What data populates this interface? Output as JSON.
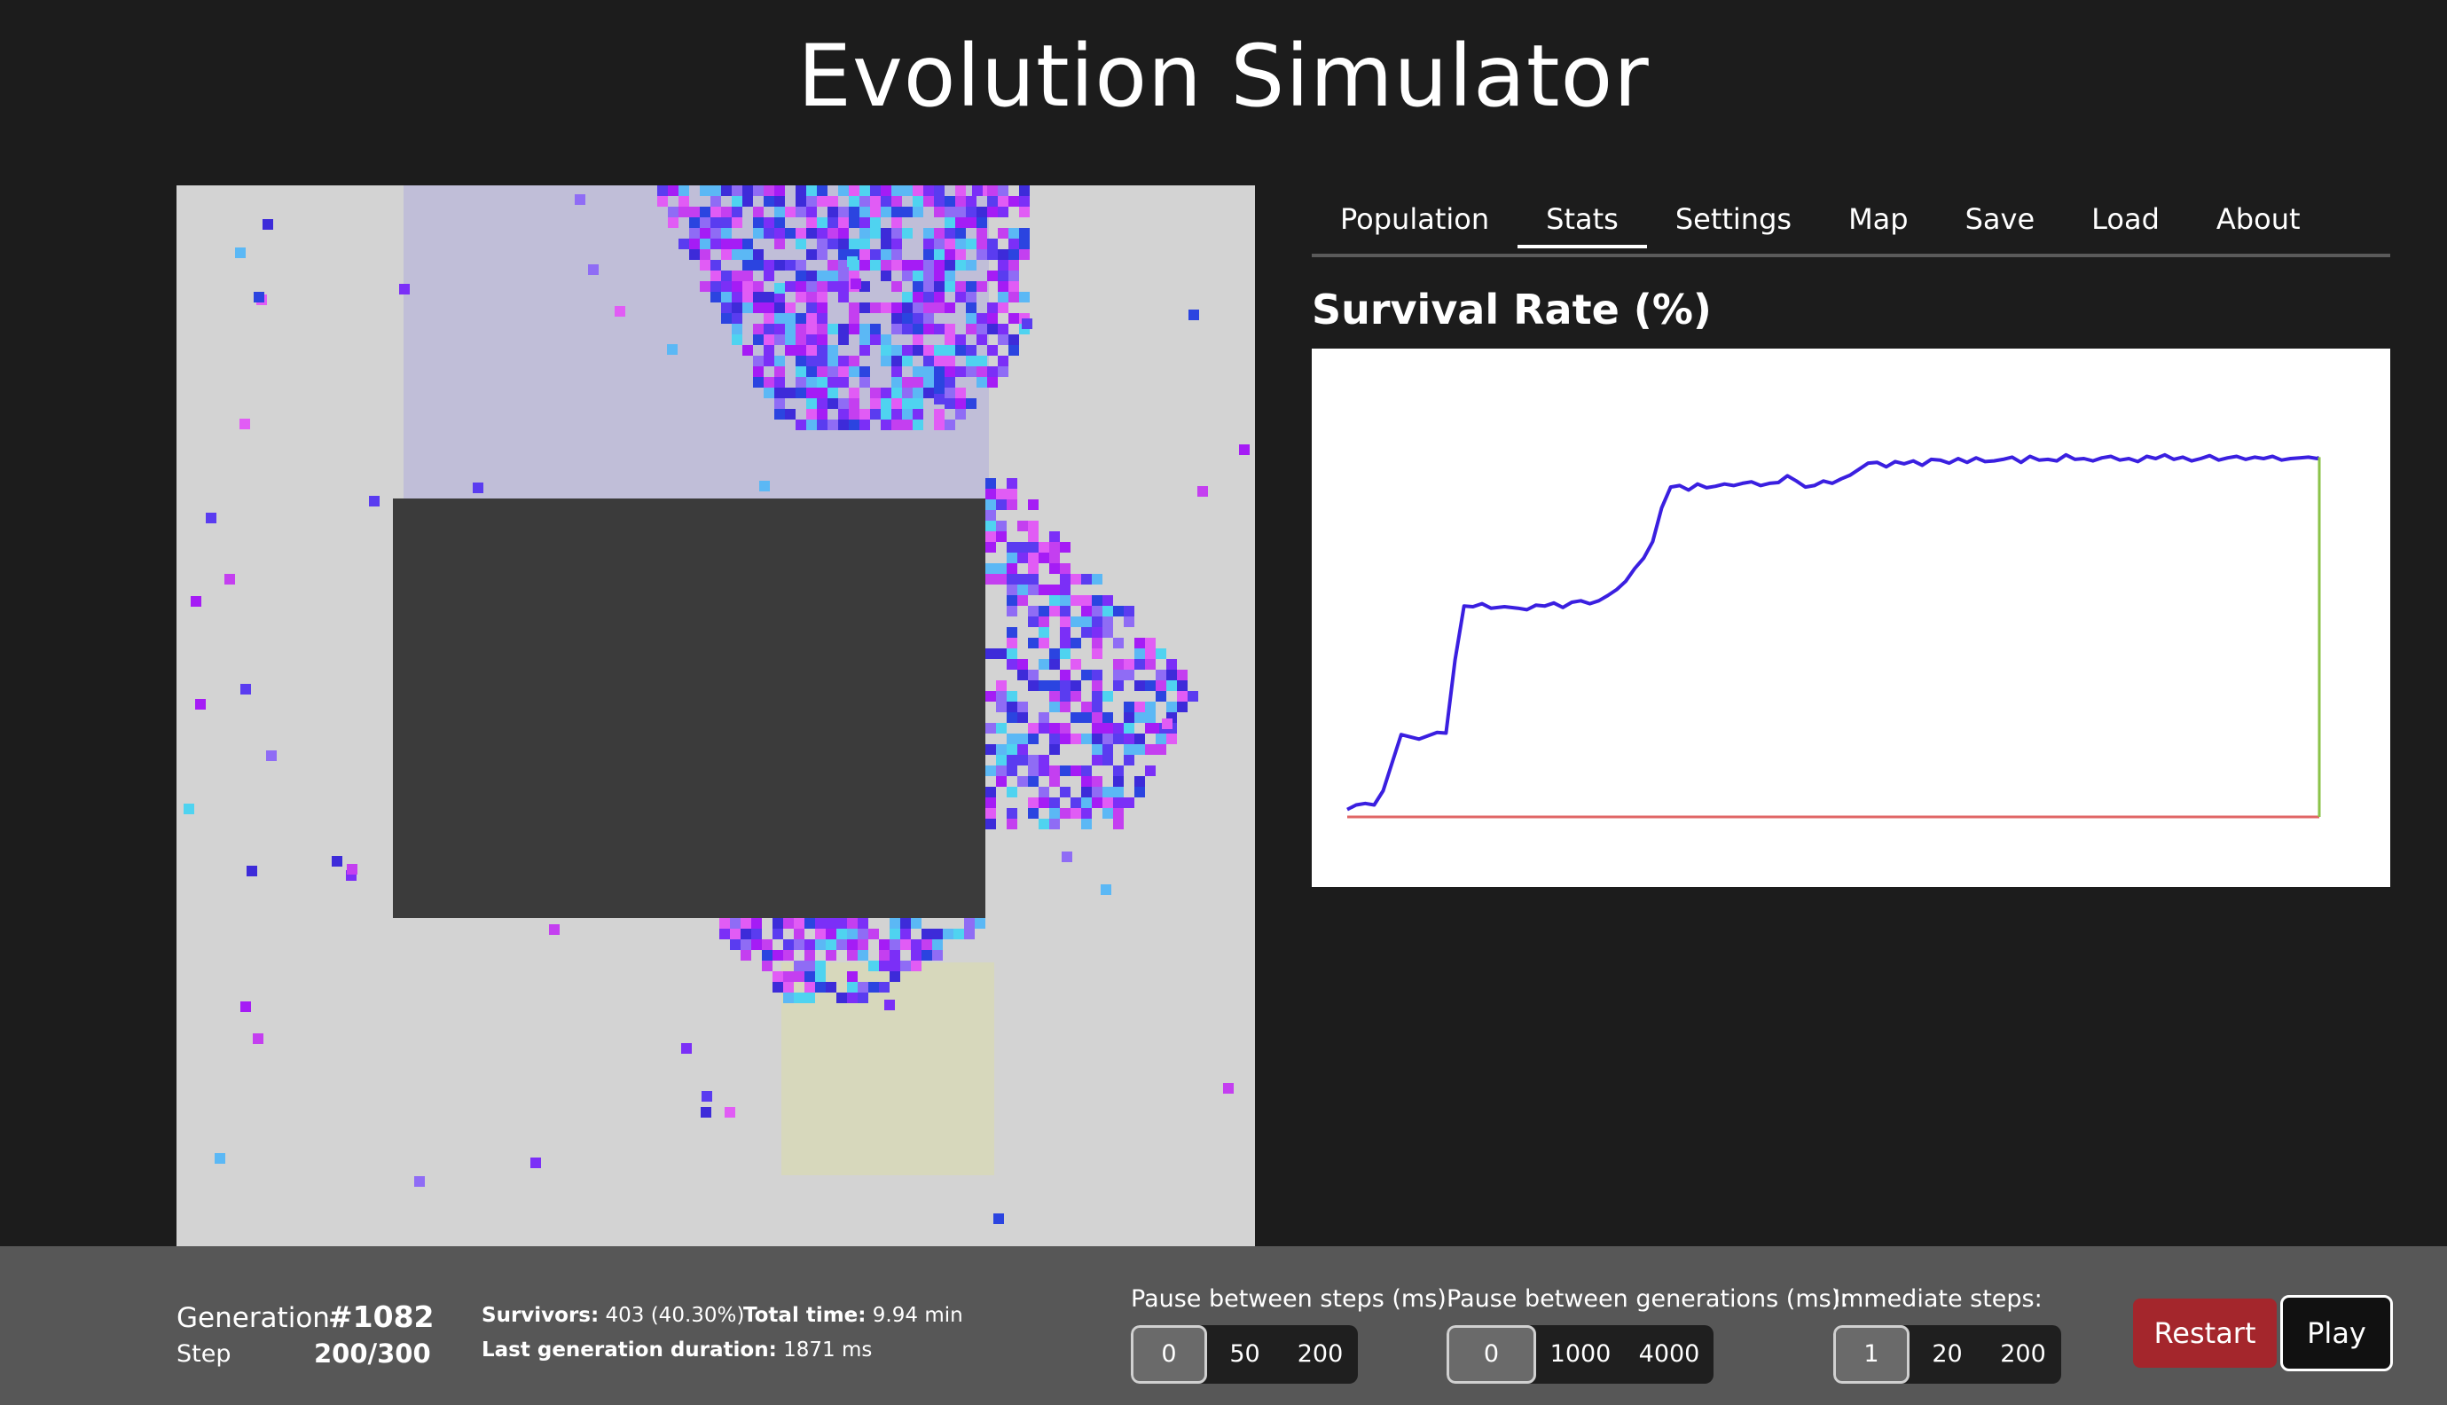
{
  "app": {
    "title": "Evolution Simulator"
  },
  "tabs": [
    {
      "label": "Population"
    },
    {
      "label": "Stats",
      "active": true
    },
    {
      "label": "Settings"
    },
    {
      "label": "Map"
    },
    {
      "label": "Save"
    },
    {
      "label": "Load"
    },
    {
      "label": "About"
    }
  ],
  "stats": {
    "chart_title": "Survival Rate (%)"
  },
  "chart_data": {
    "type": "line",
    "title": "Survival Rate (%)",
    "grid": false,
    "legend": "none",
    "ylim": [
      0,
      60
    ],
    "series": [
      {
        "color": "#3a1fe0",
        "x": [
          0,
          10,
          20,
          30,
          40,
          60,
          80,
          100,
          110,
          120,
          130,
          140,
          150,
          160,
          175,
          190,
          200,
          210,
          220,
          230,
          240,
          250,
          260,
          270,
          280,
          290,
          300,
          310,
          320,
          330,
          340,
          350,
          360,
          370,
          380,
          390,
          400,
          410,
          420,
          430,
          440,
          450,
          460,
          470,
          480,
          490,
          500,
          510,
          520,
          530,
          540,
          550,
          560,
          570,
          580,
          590,
          600,
          610,
          620,
          630,
          640,
          650,
          660,
          670,
          680,
          690,
          700,
          710,
          720,
          730,
          740,
          750,
          760,
          770,
          780,
          790,
          800,
          810,
          820,
          830,
          840,
          850,
          860,
          870,
          880,
          890,
          900,
          910,
          920,
          930,
          940,
          950,
          960,
          970,
          980,
          990,
          1000,
          1010,
          1020,
          1030,
          1040,
          1050,
          1060,
          1070,
          1080,
          1082
        ],
        "y": [
          1.0,
          1.6,
          1.8,
          1.6,
          3.5,
          11.0,
          10.4,
          11.3,
          11.2,
          21.0,
          28.2,
          28.1,
          28.5,
          27.9,
          28.1,
          27.9,
          27.7,
          28.3,
          28.2,
          28.6,
          28.0,
          28.7,
          28.9,
          28.5,
          28.9,
          29.6,
          30.4,
          31.5,
          33.2,
          34.6,
          36.8,
          41.3,
          44.1,
          44.3,
          43.7,
          44.5,
          44.0,
          44.2,
          44.5,
          44.3,
          44.6,
          44.8,
          44.3,
          44.6,
          44.7,
          45.6,
          44.9,
          44.1,
          44.3,
          44.9,
          44.6,
          45.2,
          45.7,
          46.5,
          47.3,
          47.4,
          46.8,
          47.5,
          47.2,
          47.6,
          47.0,
          47.8,
          47.7,
          47.3,
          47.9,
          47.4,
          48.0,
          47.5,
          47.6,
          47.8,
          48.1,
          47.4,
          48.2,
          47.7,
          47.8,
          47.6,
          48.4,
          47.8,
          47.9,
          47.6,
          48.0,
          48.2,
          47.7,
          47.9,
          47.5,
          48.2,
          47.9,
          48.4,
          47.8,
          48.1,
          47.6,
          47.9,
          48.3,
          47.7,
          48.0,
          48.2,
          47.8,
          48.1,
          47.9,
          48.2,
          47.7,
          47.9,
          48.0,
          48.1,
          47.9,
          48.1
        ]
      },
      {
        "color": "#e06666",
        "x": [
          0,
          1082
        ],
        "y": [
          0,
          0
        ]
      }
    ],
    "marker": {
      "color": "#8bc34a",
      "x": 1082
    }
  },
  "footer": {
    "generation_label": "Generation",
    "generation_value": "#1082",
    "step_label": "Step",
    "step_value": "200/300",
    "survivors_label": "Survivors:",
    "survivors_value": "403 (40.30%)",
    "total_time_label": "Total time:",
    "total_time_value": "9.94 min",
    "last_gen_label": "Last generation duration:",
    "last_gen_value": "1871 ms",
    "pause_steps": {
      "label": "Pause between steps (ms):",
      "options": [
        "0",
        "50",
        "200"
      ],
      "selected": "0"
    },
    "pause_generations": {
      "label": "Pause between generations (ms):",
      "options": [
        "0",
        "1000",
        "4000"
      ],
      "selected": "0"
    },
    "immediate_steps": {
      "label": "Immediate steps:",
      "options": [
        "1",
        "20",
        "200"
      ],
      "selected": "1"
    },
    "restart_label": "Restart",
    "play_label": "Play"
  },
  "colors": {
    "background": "#1c1c1c",
    "footer": "#575757",
    "restart": "#a4262c",
    "sim_background": "#d3d3d3",
    "spawn_zone": "#c0bed8",
    "safe_zone": "#d7d8bc",
    "obstacle": "#3b3b3b"
  }
}
